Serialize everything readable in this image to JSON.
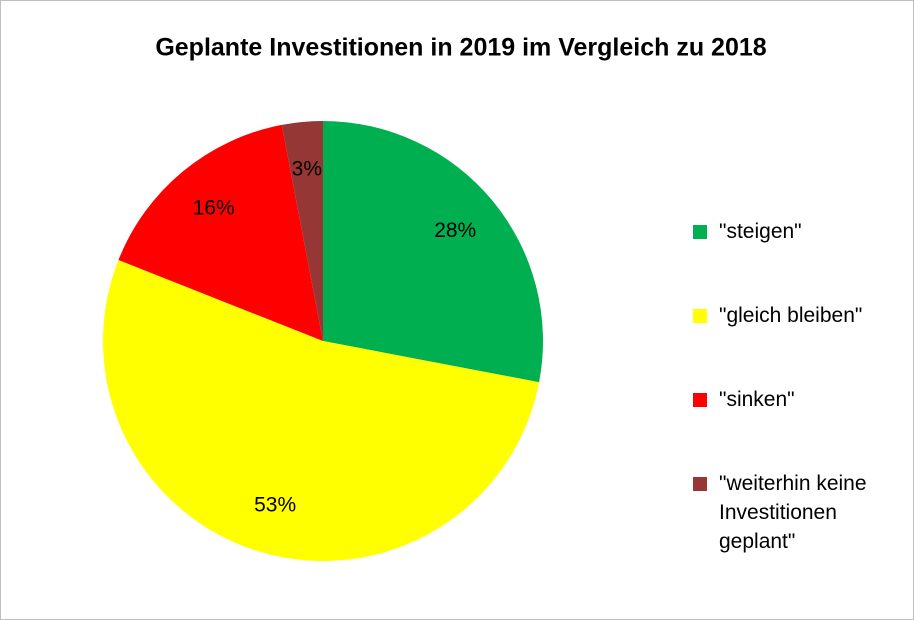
{
  "chart_data": {
    "type": "pie",
    "title": "Geplante Investitionen in 2019 im Vergleich zu 2018",
    "categories": [
      "\"steigen\"",
      "\"gleich bleiben\"",
      "\"sinken\"",
      "\"weiterhin keine Investitionen geplant\""
    ],
    "values": [
      28,
      53,
      16,
      3
    ],
    "value_labels": [
      "28%",
      "53%",
      "16%",
      "3%"
    ],
    "colors": [
      "#00b050",
      "#ffff00",
      "#ff0000",
      "#953735"
    ],
    "legend": "right"
  }
}
